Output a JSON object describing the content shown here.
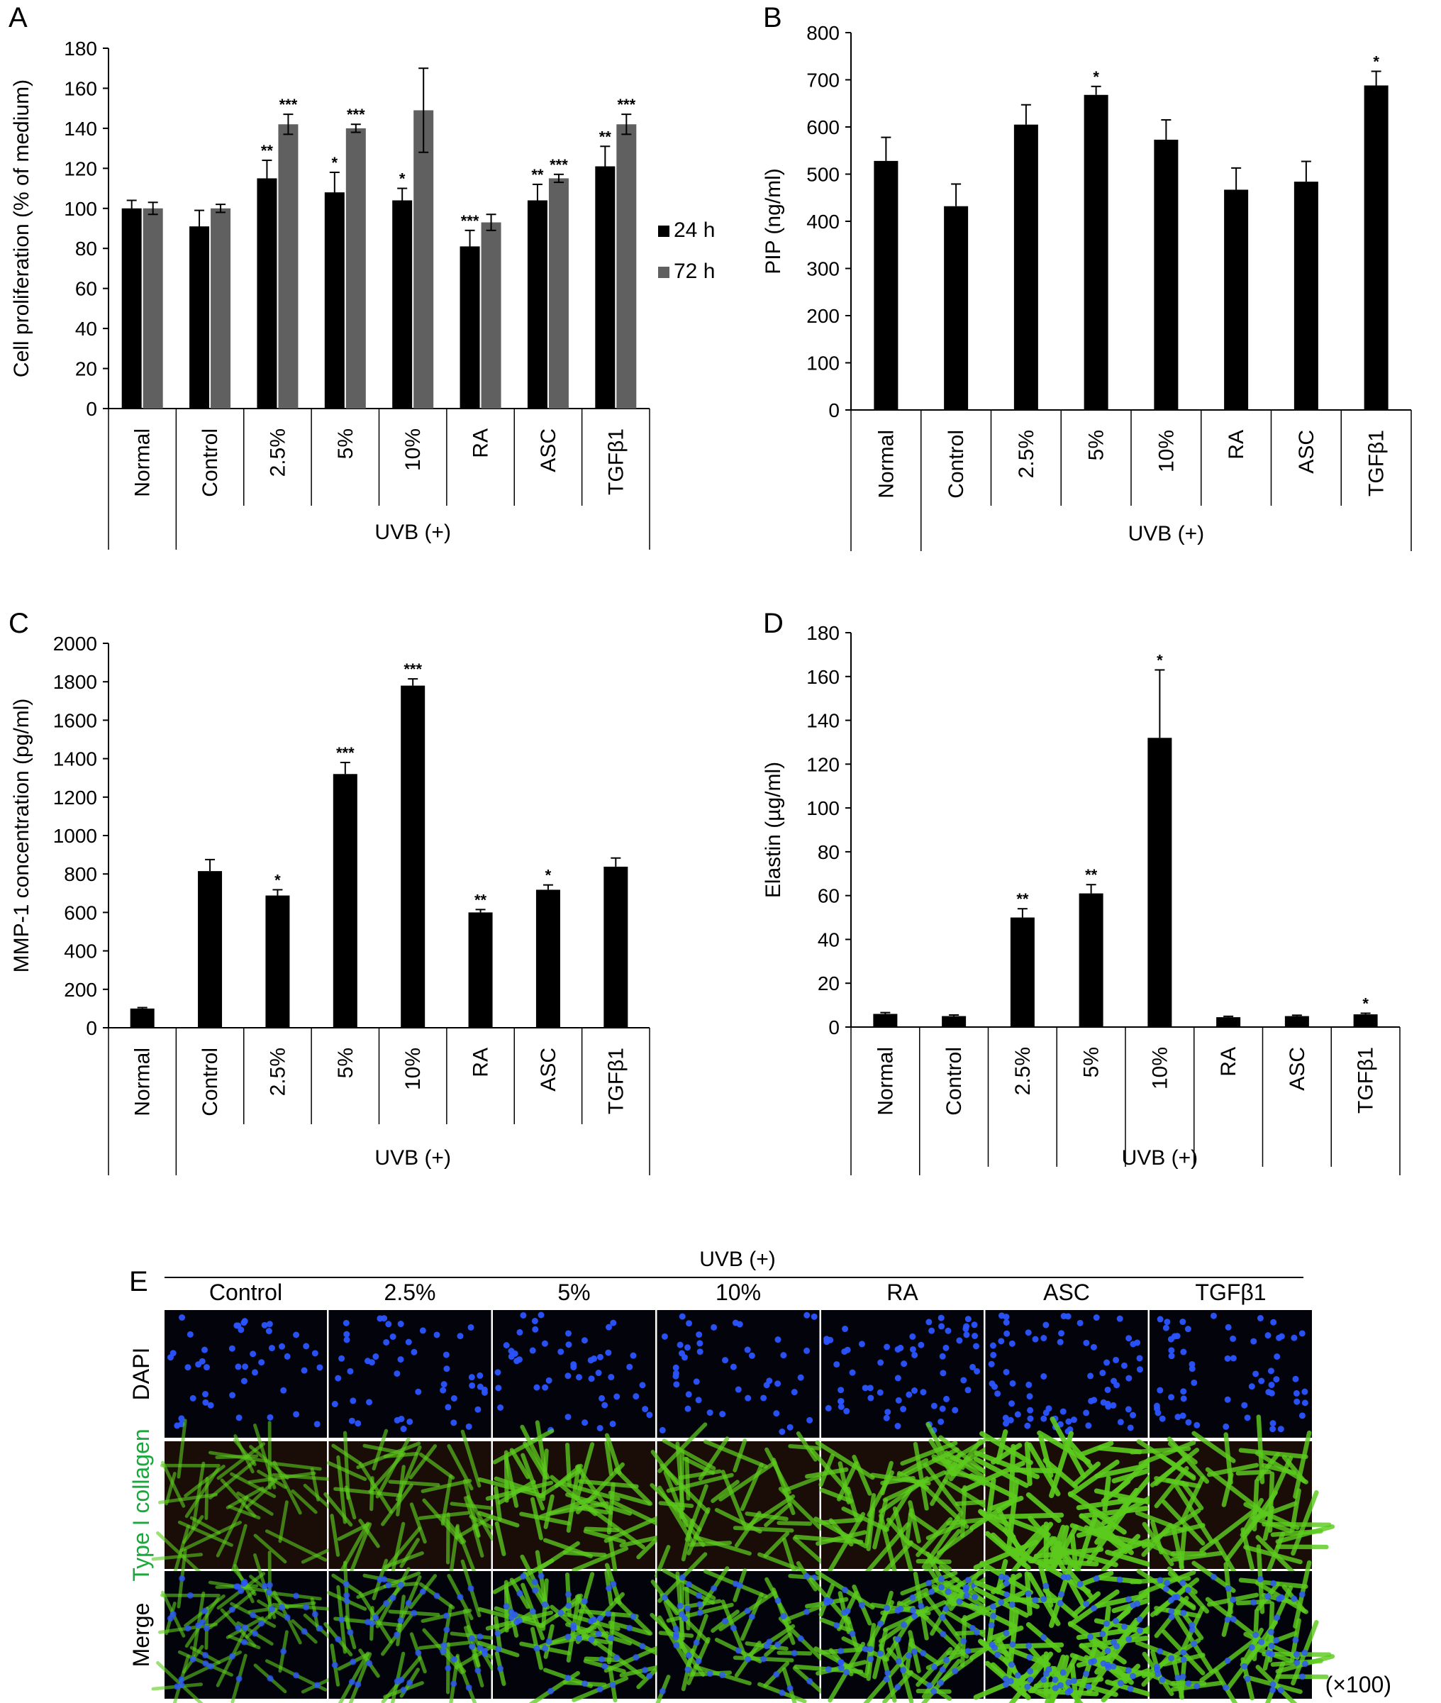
{
  "colors": {
    "bar_24h": "#000000",
    "bar_72h": "#606060",
    "bar_single": "#000000",
    "dapi": "#2a54ff",
    "collagen": "#5ccb1e",
    "collagen_label": "#1aa83a",
    "micro_bg": "#03030c"
  },
  "chart_data": [
    {
      "panel": "A",
      "type": "bar",
      "ylabel": "Cell proliferation (% of medium)",
      "ylim": [
        0,
        180
      ],
      "yticks": [
        "0",
        "20",
        "40",
        "60",
        "80",
        "100",
        "120",
        "140",
        "160",
        "180"
      ],
      "categories": [
        "Normal",
        "Control",
        "2.5%",
        "5%",
        "10%",
        "RA",
        "ASC",
        "TGFβ1"
      ],
      "group_label": "UVB (+)",
      "legend_position": "right",
      "series": [
        {
          "name": "24 h",
          "values": [
            100,
            91,
            115,
            108,
            104,
            81,
            104,
            121
          ],
          "errors": [
            4,
            8,
            9,
            10,
            6,
            8,
            8,
            10
          ],
          "significance": [
            "",
            "",
            "**",
            "*",
            "*",
            "***",
            "**",
            "**"
          ]
        },
        {
          "name": "72 h",
          "values": [
            100,
            100,
            142,
            140,
            149,
            93,
            115,
            142
          ],
          "errors": [
            3,
            2,
            5,
            2,
            21,
            4,
            2,
            5
          ],
          "significance": [
            "",
            "",
            "***",
            "***",
            "",
            "",
            "***",
            "***"
          ]
        }
      ]
    },
    {
      "panel": "B",
      "type": "bar",
      "ylabel": "PIP (ng/ml)",
      "ylim": [
        0,
        800
      ],
      "yticks": [
        "0",
        "100",
        "200",
        "300",
        "400",
        "500",
        "600",
        "700",
        "800"
      ],
      "categories": [
        "Normal",
        "Control",
        "2.5%",
        "5%",
        "10%",
        "RA",
        "ASC",
        "TGFβ1"
      ],
      "group_label": "UVB (+)",
      "series": [
        {
          "values": [
            528,
            432,
            605,
            668,
            573,
            467,
            484,
            688
          ],
          "errors": [
            50,
            47,
            42,
            18,
            42,
            46,
            43,
            30
          ],
          "significance": [
            "",
            "",
            "",
            "*",
            "",
            "",
            "",
            "*"
          ]
        }
      ]
    },
    {
      "panel": "C",
      "type": "bar",
      "ylabel": "MMP-1 concentration (pg/ml)",
      "ylim": [
        0,
        2000
      ],
      "yticks": [
        "0",
        "200",
        "400",
        "600",
        "800",
        "1000",
        "1200",
        "1400",
        "1600",
        "1800",
        "2000"
      ],
      "categories": [
        "Normal",
        "Control",
        "2.5%",
        "5%",
        "10%",
        "RA",
        "ASC",
        "TGFβ1"
      ],
      "group_label": "UVB (+)",
      "series": [
        {
          "values": [
            100,
            815,
            688,
            1320,
            1780,
            600,
            718,
            838
          ],
          "errors": [
            5,
            60,
            30,
            60,
            35,
            15,
            25,
            45
          ],
          "significance": [
            "",
            "",
            "*",
            "***",
            "***",
            "**",
            "*",
            ""
          ]
        }
      ]
    },
    {
      "panel": "D",
      "type": "bar",
      "ylabel": "Elastin (µg/ml)",
      "ylim": [
        0,
        180
      ],
      "yticks": [
        "0",
        "20",
        "40",
        "60",
        "80",
        "100",
        "120",
        "140",
        "160",
        "180"
      ],
      "categories": [
        "Normal",
        "Control",
        "2.5%",
        "5%",
        "10%",
        "RA",
        "ASC",
        "TGFβ1"
      ],
      "group_label": "UVB (+)",
      "series": [
        {
          "values": [
            6,
            5,
            50,
            61,
            132,
            4.5,
            5,
            5.8
          ],
          "errors": [
            0.6,
            0.5,
            4,
            4,
            31,
            0.4,
            0.4,
            0.5
          ],
          "significance": [
            "",
            "",
            "**",
            "**",
            "*",
            "",
            "",
            "*"
          ]
        }
      ]
    }
  ],
  "panel_e": {
    "letter": "E",
    "group_label": "UVB (+)",
    "columns": [
      "Control",
      "2.5%",
      "5%",
      "10%",
      "RA",
      "ASC",
      "TGFβ1"
    ],
    "rows": [
      "DAPI",
      "Type I collagen",
      "Merge"
    ],
    "magnification": "(×100)",
    "collagen_intensity": [
      0.45,
      0.55,
      0.75,
      0.7,
      0.8,
      1.0,
      0.85
    ],
    "cell_density": [
      0.45,
      0.5,
      0.55,
      0.45,
      0.8,
      1.0,
      0.75
    ]
  }
}
